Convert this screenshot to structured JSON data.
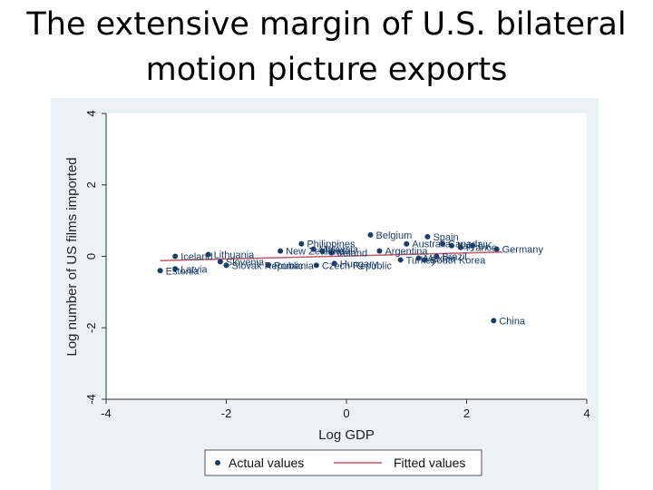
{
  "slide": {
    "title": "The extensive margin of U.S. bilateral\nmotion picture exports"
  },
  "chart_data": {
    "type": "scatter",
    "xlabel": "Log GDP",
    "ylabel": "Log number of US films imported",
    "xlim": [
      -4,
      4
    ],
    "ylim": [
      -4,
      4
    ],
    "xticks": [
      "-4",
      "-2",
      "0",
      "2",
      "4"
    ],
    "yticks": [
      "-4",
      "-2",
      "0",
      "2",
      "4"
    ],
    "grid": false,
    "legend_position": "bottom",
    "series": [
      {
        "name": "Actual values",
        "color": "#1a3d6b",
        "points": [
          {
            "x": -3.1,
            "y": -0.4,
            "label": "Estonia"
          },
          {
            "x": -2.85,
            "y": -0.35,
            "label": "Latvia"
          },
          {
            "x": -2.85,
            "y": 0.0,
            "label": "Iceland"
          },
          {
            "x": -2.3,
            "y": 0.05,
            "label": "Lithuania"
          },
          {
            "x": -2.1,
            "y": -0.15,
            "label": "Slovenia"
          },
          {
            "x": -2.0,
            "y": -0.25,
            "label": "Slovak Republic"
          },
          {
            "x": -1.3,
            "y": -0.25,
            "label": "Romania"
          },
          {
            "x": -1.1,
            "y": 0.15,
            "label": "New Zealand"
          },
          {
            "x": -0.75,
            "y": 0.35,
            "label": "Philippines"
          },
          {
            "x": -0.55,
            "y": 0.2,
            "label": "Malaysia"
          },
          {
            "x": -0.4,
            "y": 0.15,
            "label": "Israel"
          },
          {
            "x": -0.25,
            "y": 0.1,
            "label": "Ireland"
          },
          {
            "x": -0.5,
            "y": -0.25,
            "label": "Czech Republic"
          },
          {
            "x": -0.2,
            "y": -0.2,
            "label": "Hungary"
          },
          {
            "x": 0.4,
            "y": 0.6,
            "label": "Belgium"
          },
          {
            "x": 0.55,
            "y": 0.15,
            "label": "Argentina"
          },
          {
            "x": 0.9,
            "y": -0.1,
            "label": "Turkey"
          },
          {
            "x": 1.0,
            "y": 0.35,
            "label": "Australia"
          },
          {
            "x": 1.35,
            "y": 0.55,
            "label": "Spain"
          },
          {
            "x": 1.6,
            "y": 0.35,
            "label": "Canada"
          },
          {
            "x": 1.75,
            "y": 0.3,
            "label": "Italy"
          },
          {
            "x": 1.9,
            "y": 0.25,
            "label": "France"
          },
          {
            "x": 2.1,
            "y": 0.3,
            "label": "UK"
          },
          {
            "x": 1.5,
            "y": 0.0,
            "label": "Brazil"
          },
          {
            "x": 1.2,
            "y": -0.05,
            "label": "Mexico"
          },
          {
            "x": 1.3,
            "y": -0.1,
            "label": "South Korea"
          },
          {
            "x": 2.5,
            "y": 0.2,
            "label": "Germany"
          },
          {
            "x": 2.45,
            "y": -1.8,
            "label": "China"
          }
        ]
      },
      {
        "name": "Fitted values",
        "color": "#c05a6a",
        "x": [
          -3.1,
          2.6
        ],
        "y": [
          -0.12,
          0.12
        ]
      }
    ]
  }
}
